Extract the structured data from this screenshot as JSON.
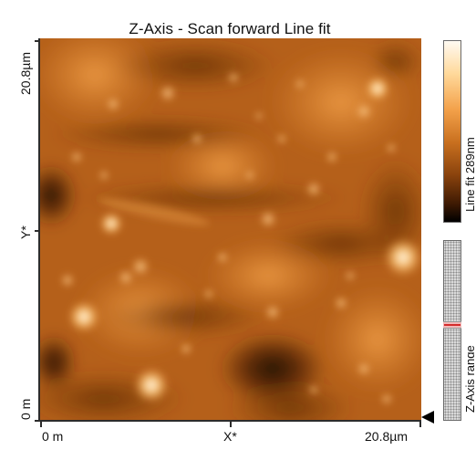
{
  "title": "Z-Axis - Scan forward   Line fit",
  "axes": {
    "y_top_label": "20.8µm",
    "y_mid_label": "Y*",
    "y_bottom_label": "0 m",
    "x_left_label": "0 m",
    "x_mid_label": "X*",
    "x_right_label": "20.8µm"
  },
  "colorbar": {
    "label": "Line fit 289nm",
    "gradient_colors": [
      "#fffaf2",
      "#ffd99b",
      "#f3a14a",
      "#c9701f",
      "#8a430d",
      "#3e1a03",
      "#000000"
    ]
  },
  "range_control": {
    "label": "Z-Axis range"
  },
  "colors": {
    "image_base": "#b9631a",
    "range_indicator": "#d42b2b"
  },
  "icons": {
    "pointer": "triangle-left-icon"
  }
}
